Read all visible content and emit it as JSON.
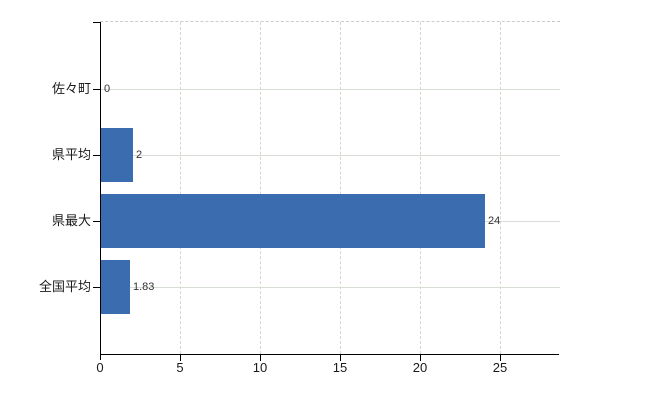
{
  "chart_data": {
    "type": "bar",
    "orientation": "horizontal",
    "title": "",
    "categories": [
      "佐々町",
      "県平均",
      "県最大",
      "全国平均"
    ],
    "values": [
      0,
      2,
      24,
      1.83
    ],
    "value_labels": [
      "0",
      "2",
      "24",
      "1.83"
    ],
    "x_ticks": [
      0,
      5,
      10,
      15,
      20,
      25
    ],
    "x_tick_labels": [
      "0",
      "5",
      "10",
      "15",
      "20",
      "25"
    ],
    "xlim": [
      0,
      28.75
    ],
    "grid": true,
    "legend": false,
    "bar_color": "#3b6cb0",
    "axis_color": "#000000",
    "h_grid_color": "#d6ded6",
    "v_grid_color": "#d9d3d3",
    "top_border_color": "#cfcaca",
    "category_label_color": "#1a1a1a",
    "x_tick_label_color": "#1a1a1a",
    "value_label_color": "#333333"
  }
}
